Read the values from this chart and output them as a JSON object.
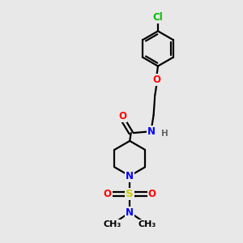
{
  "bg_color": "#e8e8e8",
  "bond_color": "#000000",
  "bond_width": 1.6,
  "atom_colors": {
    "C": "#000000",
    "N": "#0000ff",
    "O": "#ff0000",
    "S": "#cccc00",
    "Cl": "#00bb00",
    "H": "#666666"
  },
  "font_size": 8.5,
  "fig_size": [
    3.0,
    3.0
  ],
  "dpi": 100,
  "xlim": [
    0,
    10
  ],
  "ylim": [
    0,
    10
  ]
}
